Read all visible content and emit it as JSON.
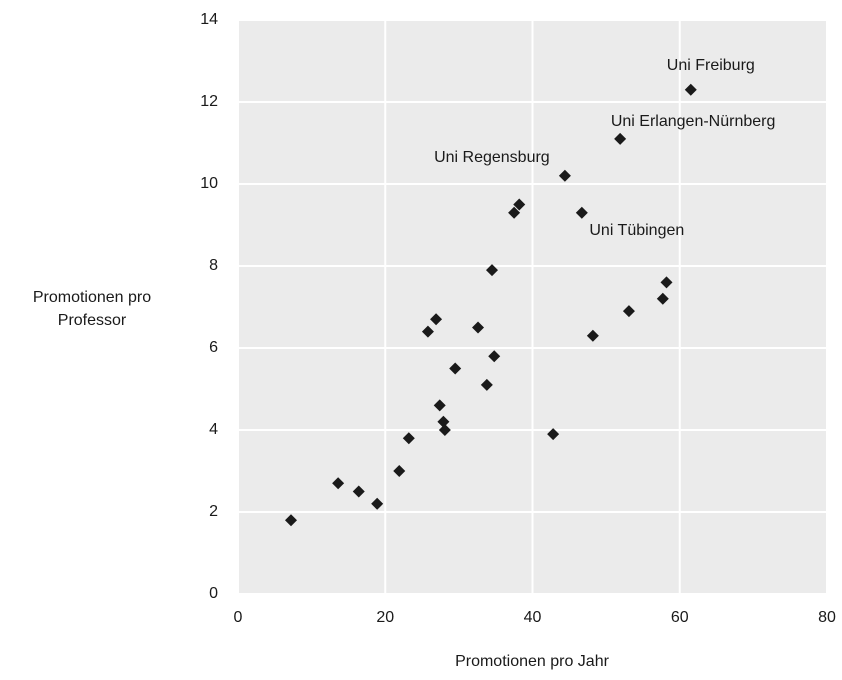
{
  "chart_data": {
    "type": "scatter",
    "xlabel": "Promotionen pro Jahr",
    "ylabel": [
      "Promotionen pro",
      "Professor"
    ],
    "x": [
      7.2,
      13.6,
      16.4,
      18.9,
      21.9,
      23.2,
      25.8,
      26.9,
      27.4,
      27.9,
      28.1,
      29.5,
      32.6,
      33.8,
      34.5,
      34.8,
      37.5,
      38.2,
      42.8,
      44.4,
      46.7,
      48.2,
      51.9,
      53.1,
      57.7,
      58.2,
      61.5
    ],
    "values": [
      1.8,
      2.7,
      2.5,
      2.2,
      3.0,
      3.8,
      6.4,
      6.7,
      4.6,
      4.2,
      4.0,
      5.5,
      6.5,
      5.1,
      7.9,
      5.8,
      9.3,
      9.5,
      3.9,
      10.2,
      9.3,
      6.3,
      11.1,
      6.9,
      7.2,
      7.6,
      12.3
    ],
    "color": "#1a1a1a",
    "annotations": [
      "Uni Freiburg",
      "Uni Erlangen-Nürnberg",
      "Uni Regensburg",
      "Uni Tübingen"
    ],
    "xlim": [
      0,
      80
    ],
    "xticks": [
      0,
      20,
      40,
      60,
      80
    ],
    "ylim": [
      0,
      14
    ],
    "yticks": [
      0,
      2,
      4,
      6,
      8,
      10,
      12,
      14
    ],
    "grid": true
  }
}
